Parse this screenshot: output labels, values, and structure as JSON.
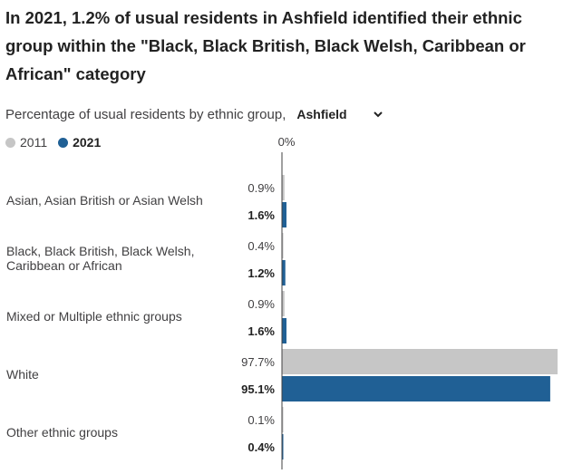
{
  "title": "In 2021, 1.2% of usual residents in Ashfield identified their ethnic group within the \"Black, Black British, Black Welsh, Caribbean or African\" category",
  "subtitle": "Percentage of usual residents by ethnic group,",
  "area_select": {
    "value": "Ashfield",
    "icon": "chevron-down-icon"
  },
  "legend": [
    {
      "label": "2011",
      "color": "#c6c6c6"
    },
    {
      "label": "2021",
      "color": "#206095"
    }
  ],
  "chart_data": {
    "type": "bar",
    "orientation": "horizontal",
    "axis_tick_label": "0%",
    "categories": [
      [
        "Asian, Asian British or Asian Welsh"
      ],
      [
        "Black, Black British, Black Welsh,",
        "Caribbean or African"
      ],
      [
        "Mixed or Multiple ethnic groups"
      ],
      [
        "White"
      ],
      [
        "Other ethnic groups"
      ]
    ],
    "series": [
      {
        "name": "2011",
        "color": "#c6c6c6",
        "values": [
          0.9,
          0.4,
          0.9,
          97.7,
          0.1
        ],
        "labels": [
          "0.9%",
          "0.4%",
          "0.9%",
          "97.7%",
          "0.1%"
        ]
      },
      {
        "name": "2021",
        "color": "#206095",
        "values": [
          1.6,
          1.2,
          1.6,
          95.1,
          0.4
        ],
        "labels": [
          "1.6%",
          "1.2%",
          "1.6%",
          "95.1%",
          "0.4%"
        ]
      }
    ],
    "xlim": [
      0,
      97.7
    ]
  }
}
